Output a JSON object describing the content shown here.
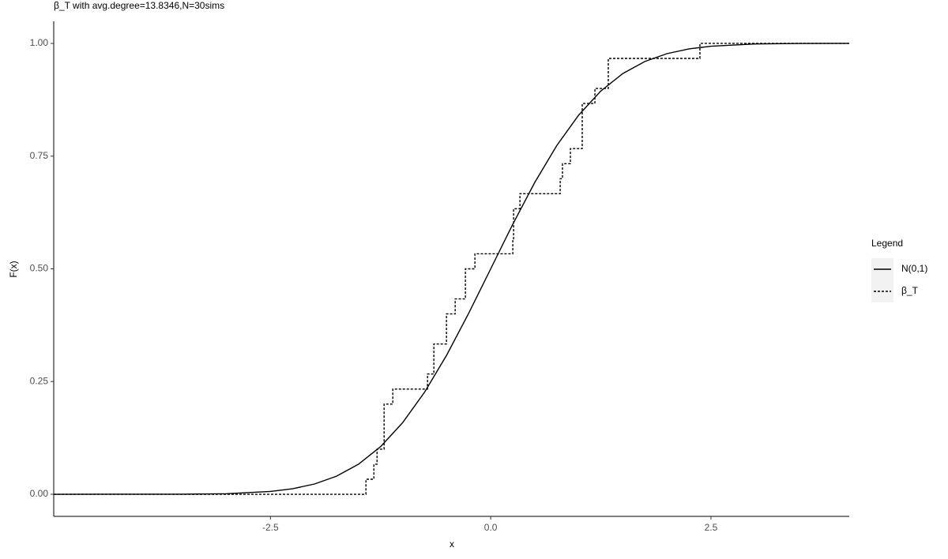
{
  "chart_data": {
    "type": "line",
    "title": "β_T with avg.degree=13.8346,N=30sims",
    "x_label": "x",
    "y_label": "F(x)",
    "legend_title": "Legend",
    "legend_position": "right",
    "xlim": [
      -4.96,
      4.07
    ],
    "ylim": [
      -0.049,
      1.049
    ],
    "xticks": [
      -2.5,
      {
        "value": 0,
        "label": "0.0"
      },
      2.5
    ],
    "yticks": [
      {
        "value": 0,
        "label": "0.00"
      },
      {
        "value": 0.25,
        "label": "0.25"
      },
      {
        "value": 0.5,
        "label": "0.50"
      },
      {
        "value": 0.75,
        "label": "0.75"
      },
      {
        "value": 1,
        "label": "1.00"
      }
    ],
    "grid": false,
    "series": [
      {
        "name": "N(0,1)",
        "color": "#000000",
        "dash": "solid",
        "step": false,
        "x": [
          -4.96,
          -3.5,
          -3,
          -2.5,
          -2.25,
          -2,
          -1.75,
          -1.5,
          -1.25,
          -1,
          -0.75,
          -0.5,
          -0.25,
          0,
          0.25,
          0.5,
          0.75,
          1,
          1.25,
          1.5,
          1.75,
          2,
          2.25,
          2.5,
          3,
          3.5,
          4.07
        ],
        "values": [
          0,
          0.0002,
          0.0013,
          0.0062,
          0.0122,
          0.0228,
          0.0401,
          0.0668,
          0.1056,
          0.1587,
          0.2266,
          0.3085,
          0.4013,
          0.5,
          0.5987,
          0.6915,
          0.7734,
          0.8413,
          0.8944,
          0.9332,
          0.9599,
          0.9772,
          0.9878,
          0.9938,
          0.9987,
          0.9998,
          1
        ]
      },
      {
        "name": "β_T",
        "color": "#000000",
        "dash": "dotted",
        "step": true,
        "x": [
          -4.96,
          -1.416,
          -1.326,
          -1.29,
          -1.21,
          -1.111,
          -0.717,
          -0.645,
          -0.502,
          -0.403,
          -0.287,
          -0.179,
          0.251,
          0.26,
          0.332,
          0.789,
          0.815,
          0.905,
          1.039,
          1.183,
          1.335,
          2.375,
          4.07
        ],
        "values": [
          0,
          0.0333,
          0.0667,
          0.1,
          0.2,
          0.2333,
          0.2667,
          0.3333,
          0.4,
          0.4333,
          0.5,
          0.5333,
          0.5667,
          0.6333,
          0.6667,
          0.7,
          0.7333,
          0.7667,
          0.8667,
          0.9,
          0.9667,
          1,
          1
        ]
      }
    ]
  }
}
